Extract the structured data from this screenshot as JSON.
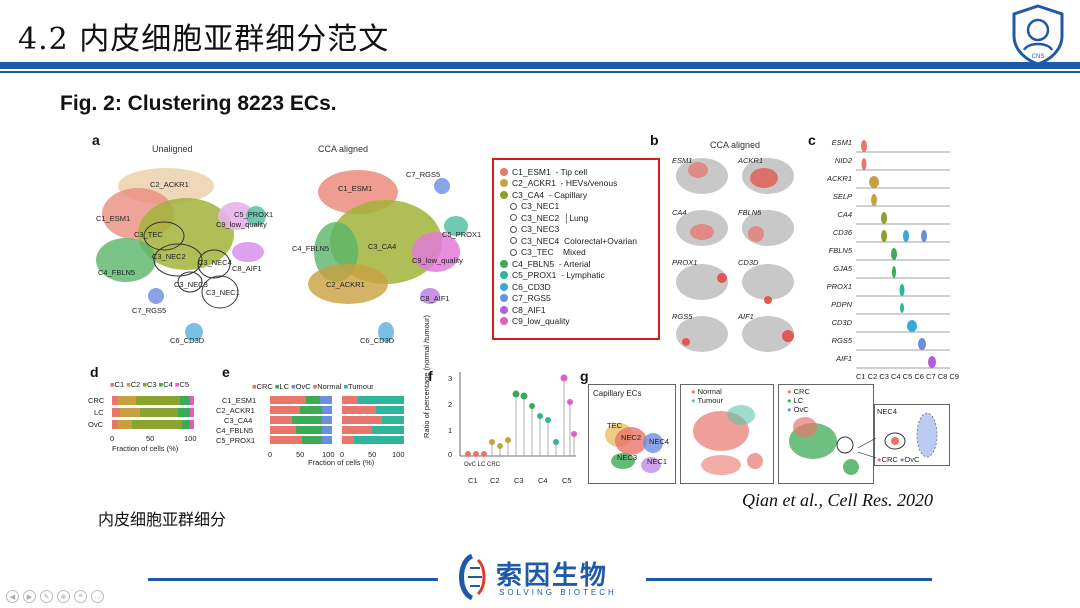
{
  "slide": {
    "title": "4.2 内皮细胞亚群细分范文",
    "figure_title": "Fig. 2: Clustering 8223 ECs.",
    "caption": "内皮细胞亚群细分",
    "citation": "Qian et al., Cell Res. 2020"
  },
  "footer": {
    "brand": "索因生物",
    "sub": "SOLVING BIOTECH",
    "logo_text": "CNS"
  },
  "panels": {
    "a": {
      "letter": "a",
      "left_title": "Unaligned",
      "right_title": "CCA aligned",
      "left_labels": [
        "C2_ACKR1",
        "C1_ESM1",
        "C3_TEC",
        "C3_NEC2",
        "C3_NEC4",
        "C3_NEC3",
        "C3_NEC1",
        "C4_FBLN5",
        "C7_RGS5",
        "C6_CD3D",
        "C5_PROX1",
        "C8_AIF1",
        "C9_low_quality"
      ],
      "right_labels": [
        "C1_ESM1",
        "C7_RGS5",
        "C4_FBLN5",
        "C3_CA4",
        "C5_PROX1",
        "C9_low_quality",
        "C2_ACKR1",
        "C8_AIF1",
        "C6_CD3D"
      ]
    },
    "legend": {
      "items": [
        {
          "label": "C1_ESM1",
          "note": "- Tip cell",
          "color": "#e8766b"
        },
        {
          "label": "C2_ACKR1",
          "note": "- HEVs/venous",
          "color": "#c9a040"
        },
        {
          "label": "C3_CA4",
          "note": "- Capillary",
          "color": "#8aa32e"
        }
      ],
      "sub_items": [
        "C3_NEC1",
        "C3_NEC2",
        "C3_NEC3",
        "C3_NEC4",
        "C3_TEC"
      ],
      "sub_notes": [
        "Lung",
        "Colorectal+Ovarian",
        "Mixed"
      ],
      "items2": [
        {
          "label": "C4_FBLN5",
          "note": "- Arterial",
          "color": "#3daa55"
        },
        {
          "label": "C5_PROX1",
          "note": "- Lymphatic",
          "color": "#2fb59a"
        },
        {
          "label": "C6_CD3D",
          "note": "",
          "color": "#37a9d4"
        },
        {
          "label": "C7_RGS5",
          "note": "",
          "color": "#6b8fe0"
        },
        {
          "label": "C8_AIF1",
          "note": "",
          "color": "#b35ee0"
        },
        {
          "label": "C9_low_quality",
          "note": "",
          "color": "#e060c0"
        }
      ]
    },
    "b": {
      "letter": "b",
      "title": "CCA aligned",
      "genes": [
        "ESM1",
        "ACKR1",
        "CA4",
        "FBLN5",
        "PROX1",
        "CD3D",
        "RGS5",
        "AIF1"
      ]
    },
    "c": {
      "letter": "c",
      "genes": [
        "ESM1",
        "NID2",
        "ACKR1",
        "SELP",
        "CA4",
        "CD36",
        "FBLN5",
        "GJA5",
        "PROX1",
        "PDPN",
        "CD3D",
        "RGS5",
        "AIF1"
      ],
      "xticks": "C1 C2 C3 C4 C5 C6 C7 C8 C9"
    },
    "d": {
      "letter": "d",
      "legend": [
        "C1",
        "C2",
        "C3",
        "C4",
        "C5"
      ],
      "rows": [
        "CRC",
        "LC",
        "OvC"
      ],
      "xticks": [
        "0",
        "50",
        "100"
      ],
      "xlabel": "Fraction of cells (%)"
    },
    "e": {
      "letter": "e",
      "legend": [
        "CRC",
        "LC",
        "OvC",
        "Normal",
        "Tumour"
      ],
      "rows": [
        "C1_ESM1",
        "C2_ACKR1",
        "C3_CA4",
        "C4_FBLN5",
        "C5_PROX1"
      ],
      "xticks": [
        "0",
        "50",
        "100",
        "0",
        "50",
        "100"
      ],
      "xlabel": "Fraction of cells (%)"
    },
    "f": {
      "letter": "f",
      "ylabel": "Ratio of percentage (normal /tumour)",
      "yticks": [
        "0",
        "1",
        "2",
        "3"
      ],
      "groups": [
        "C1",
        "C2",
        "C3",
        "C4",
        "C5"
      ],
      "sub": [
        "OvC",
        "LC",
        "CRC"
      ]
    },
    "g": {
      "letter": "g",
      "box1_title": "Capillary ECs",
      "box1_labels": [
        "TEC",
        "NEC2",
        "NEC4",
        "NEC3",
        "NEC1"
      ],
      "box2_legend": [
        "Normal",
        "Tumour"
      ],
      "box3_legend": [
        "CRC",
        "LC",
        "OvC"
      ],
      "inset_title": "NEC4",
      "inset_legend": [
        "CRC",
        "OvC"
      ]
    }
  },
  "colors": {
    "accent": "#1f5aa8",
    "legend_border": "#cc1f1f"
  }
}
